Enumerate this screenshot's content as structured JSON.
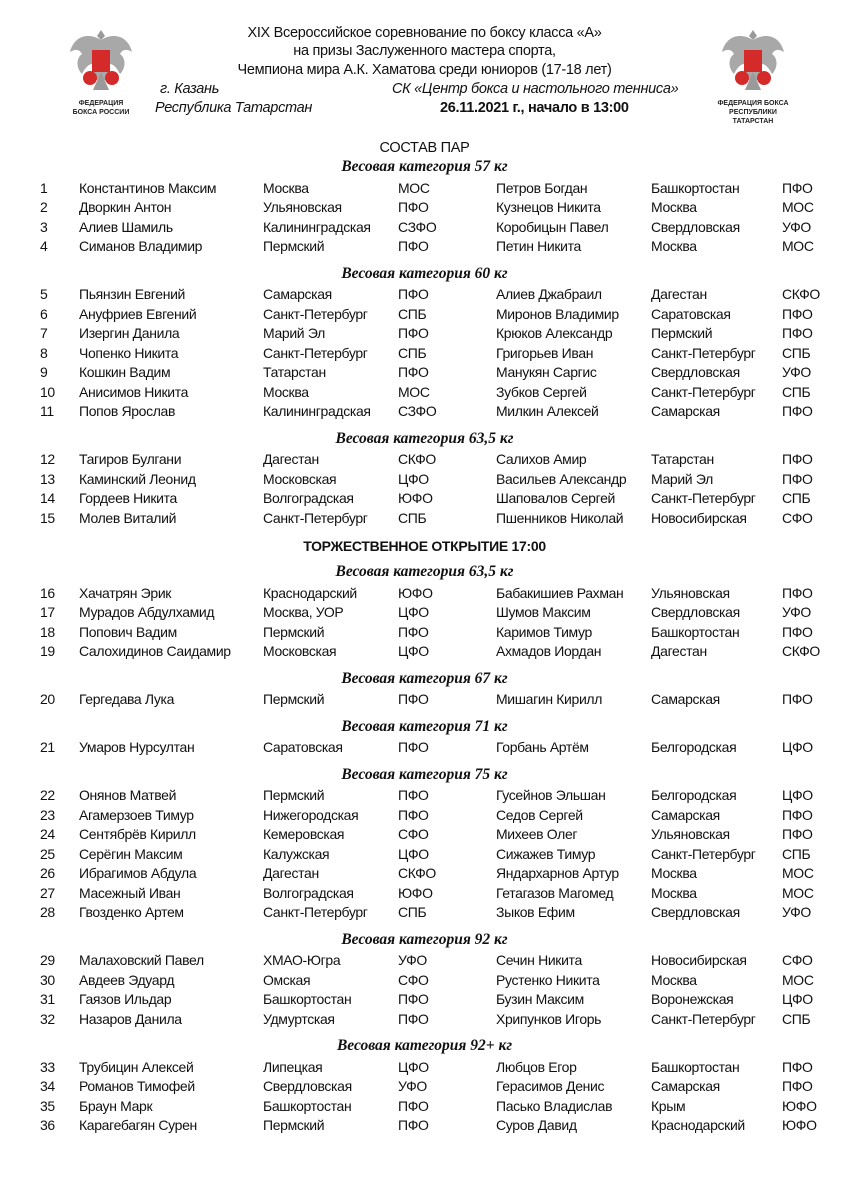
{
  "header": {
    "title_lines": [
      "XIX  Всероссийское соревнование по боксу класса «А»",
      "на призы Заслуженного мастера спорта,",
      "Чемпиона мира А.К. Хаматова среди юниоров (17-18 лет)"
    ],
    "city": "г. Казань",
    "republic": "Республика Татарстан",
    "venue": "СК «Центр бокса и настольного тенниса»",
    "date_start": "26.11.2021 г., начало в 13:00",
    "logo_left_text": [
      "ФЕДЕРАЦИЯ",
      "БОКСА РОССИИ"
    ],
    "logo_right_text": [
      "ФЕДЕРАЦИЯ БОКСА",
      "РЕСПУБЛИКИ ТАТАРСТАН"
    ],
    "logo_colors": {
      "red": "#d42a2a",
      "grey": "#9a9a9a"
    }
  },
  "document_title": "СОСТАВ  ПАР",
  "blocks": [
    {
      "type": "category",
      "label": "Весовая категория 57 кг",
      "rows": [
        [
          "1",
          "Константинов Максим",
          "Москва",
          "МОС",
          "Петров Богдан",
          "Башкортостан",
          "ПФО"
        ],
        [
          "2",
          "Дворкин Антон",
          "Ульяновская",
          "ПФО",
          "Кузнецов Никита",
          "Москва",
          "МОС"
        ],
        [
          "3",
          "Алиев Шамиль",
          "Калининградская",
          "СЗФО",
          "Коробицын Павел",
          "Свердловская",
          "УФО"
        ],
        [
          "4",
          "Симанов Владимир",
          "Пермский",
          "ПФО",
          "Петин Никита",
          "Москва",
          "МОС"
        ]
      ]
    },
    {
      "type": "category",
      "label": "Весовая категория 60 кг",
      "rows": [
        [
          "5",
          "Пьянзин Евгений",
          "Самарская",
          "ПФО",
          "Алиев Джабраил",
          "Дагестан",
          "СКФО"
        ],
        [
          "6",
          "Ануфриев Евгений",
          "Санкт-Петербург",
          "СПБ",
          "Миронов Владимир",
          "Саратовская",
          "ПФО"
        ],
        [
          "7",
          "Изергин Данила",
          "Марий Эл",
          "ПФО",
          "Крюков Александр",
          "Пермский",
          "ПФО"
        ],
        [
          "8",
          "Чопенко Никита",
          "Санкт-Петербург",
          "СПБ",
          "Григорьев Иван",
          "Санкт-Петербург",
          "СПБ"
        ],
        [
          "9",
          "Кошкин Вадим",
          "Татарстан",
          "ПФО",
          "Манукян Саргис",
          "Свердловская",
          "УФО"
        ],
        [
          "10",
          "Анисимов Никита",
          "Москва",
          "МОС",
          "Зубков Сергей",
          "Санкт-Петербург",
          "СПБ"
        ],
        [
          "11",
          "Попов Ярослав",
          "Калининградская",
          "СЗФО",
          "Милкин Алексей",
          "Самарская",
          "ПФО"
        ]
      ]
    },
    {
      "type": "category",
      "label": "Весовая категория 63,5 кг",
      "rows": [
        [
          "12",
          "Тагиров Булгани",
          "Дагестан",
          "СКФО",
          "Салихов Амир",
          "Татарстан",
          "ПФО"
        ],
        [
          "13",
          "Каминский Леонид",
          "Московская",
          "ЦФО",
          "Васильев Александр",
          "Марий Эл",
          "ПФО"
        ],
        [
          "14",
          "Гордеев Никита",
          "Волгоградская",
          "ЮФО",
          "Шаповалов Сергей",
          "Санкт-Петербург",
          "СПБ"
        ],
        [
          "15",
          "Молев Виталий",
          "Санкт-Петербург",
          "СПБ",
          "Пшенников Николай",
          "Новосибирская",
          "СФО"
        ]
      ]
    },
    {
      "type": "special",
      "label": "ТОРЖЕСТВЕННОЕ ОТКРЫТИЕ 17:00"
    },
    {
      "type": "category",
      "label": "Весовая категория 63,5 кг",
      "rows": [
        [
          "16",
          "Хачатрян Эрик",
          "Краснодарский",
          "ЮФО",
          "Бабакишиев Рахман",
          "Ульяновская",
          "ПФО"
        ],
        [
          "17",
          "Мурадов Абдулхамид",
          "Москва, УОР",
          "ЦФО",
          "Шумов Максим",
          "Свердловская",
          "УФО"
        ],
        [
          "18",
          "Попович Вадим",
          "Пермский",
          "ПФО",
          "Каримов Тимур",
          "Башкортостан",
          "ПФО"
        ],
        [
          "19",
          "Салохидинов Саидамир",
          "Московская",
          "ЦФО",
          "Ахмадов Иордан",
          "Дагестан",
          "СКФО"
        ]
      ]
    },
    {
      "type": "category",
      "label": "Весовая категория 67 кг",
      "rows": [
        [
          "20",
          "Гергедава Лука",
          "Пермский",
          "ПФО",
          "Мишагин Кирилл",
          "Самарская",
          "ПФО"
        ]
      ]
    },
    {
      "type": "category",
      "label": "Весовая категория 71 кг",
      "rows": [
        [
          "21",
          "Умаров Нурсултан",
          "Саратовская",
          "ПФО",
          "Горбань Артём",
          "Белгородская",
          "ЦФО"
        ]
      ]
    },
    {
      "type": "category",
      "label": "Весовая категория 75 кг",
      "rows": [
        [
          "22",
          "Онянов Матвей",
          "Пермский",
          "ПФО",
          "Гусейнов Эльшан",
          "Белгородская",
          "ЦФО"
        ],
        [
          "23",
          "Агамерзоев Тимур",
          "Нижегородская",
          "ПФО",
          "Седов Сергей",
          "Самарская",
          "ПФО"
        ],
        [
          "24",
          "Сентябрёв Кирилл",
          "Кемеровская",
          "СФО",
          "Михеев Олег",
          "Ульяновская",
          "ПФО"
        ],
        [
          "25",
          "Серёгин Максим",
          "Калужская",
          "ЦФО",
          "Сижажев Тимур",
          "Санкт-Петербург",
          "СПБ"
        ],
        [
          "26",
          "Ибрагимов Абдула",
          "Дагестан",
          "СКФО",
          "Яндархарнов Артур",
          "Москва",
          "МОС"
        ],
        [
          "27",
          "Масежный Иван",
          "Волгоградская",
          "ЮФО",
          "Гетагазов Магомед",
          "Москва",
          "МОС"
        ],
        [
          "28",
          "Гвозденко Артем",
          "Санкт-Петербург",
          "СПБ",
          "Зыков Ефим",
          "Свердловская",
          "УФО"
        ]
      ]
    },
    {
      "type": "category",
      "label": "Весовая категория 92 кг",
      "rows": [
        [
          "29",
          "Малаховский Павел",
          "ХМАО-Югра",
          "УФО",
          "Сечин Никита",
          "Новосибирская",
          "СФО"
        ],
        [
          "30",
          "Авдеев Эдуард",
          "Омская",
          "СФО",
          "Рустенко Никита",
          "Москва",
          "МОС"
        ],
        [
          "31",
          "Гаязов Ильдар",
          "Башкортостан",
          "ПФО",
          "Бузин Максим",
          "Воронежская",
          "ЦФО"
        ],
        [
          "32",
          "Назаров Данила",
          "Удмуртская",
          "ПФО",
          "Хрипунков Игорь",
          "Санкт-Петербург",
          "СПБ"
        ]
      ]
    },
    {
      "type": "category",
      "label": "Весовая категория 92+ кг",
      "rows": [
        [
          "33",
          "Трубицин Алексей",
          "Липецкая",
          "ЦФО",
          "Любцов Егор",
          "Башкортостан",
          "ПФО"
        ],
        [
          "34",
          "Романов Тимофей",
          "Свердловская",
          "УФО",
          "Герасимов Денис",
          "Самарская",
          "ПФО"
        ],
        [
          "35",
          "Браун Марк",
          "Башкортостан",
          "ПФО",
          "Пасько Владислав",
          "Крым",
          "ЮФО"
        ],
        [
          "36",
          "Карагебагян Сурен",
          "Пермский",
          "ПФО",
          "Суров Давид",
          "Краснодарский",
          "ЮФО"
        ]
      ]
    }
  ]
}
